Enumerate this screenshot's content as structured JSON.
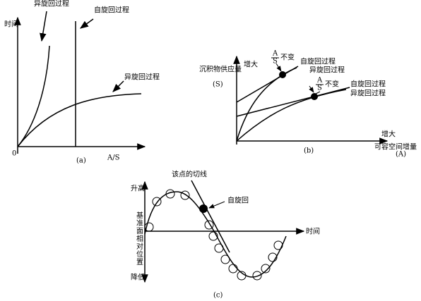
{
  "panel_a": {
    "label": "(a)",
    "y_axis": "时间",
    "x_axis": "A/S",
    "origin": "0",
    "annotations": [
      "异旋回过程",
      "自旋回过程",
      "异旋回过程"
    ]
  },
  "panel_b": {
    "label": "(b)",
    "y_axis": [
      "增大",
      "沉积物供应量",
      "(S)"
    ],
    "x_axis": [
      "增大",
      "可容空间增量",
      "(A)"
    ],
    "markers": [
      {
        "numerator": "A",
        "denominator": "S",
        "text": "不变",
        "curves": [
          "自旋回过程",
          "异旋回过程"
        ]
      },
      {
        "numerator": "A",
        "denominator": "S",
        "text": "不变",
        "curves": [
          "自旋回过程",
          "异旋回过程"
        ]
      }
    ]
  },
  "panel_c": {
    "label": "(c)",
    "tangent": "该点的切线",
    "point": "自旋回",
    "up": "升高",
    "y_axis": "基准面相对位置",
    "x_axis": "时间",
    "down": "降低"
  }
}
